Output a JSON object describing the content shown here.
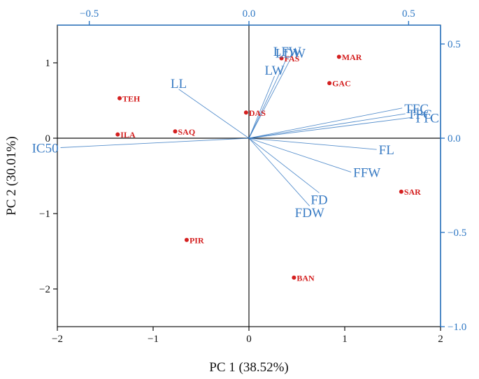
{
  "chart_data": {
    "type": "scatter",
    "title": "",
    "xlabel": "PC 1 (38.52%)",
    "ylabel": "PC 2 (30.01%)",
    "xlim": [
      -2,
      2
    ],
    "ylim": [
      -2.5,
      1.5
    ],
    "x_ticks": [
      "−2",
      "−1",
      "0",
      "1",
      "2"
    ],
    "y_ticks": [
      "−2",
      "−1",
      "0",
      "1"
    ],
    "loadings_xlim": [
      -0.6,
      0.6
    ],
    "loadings_ylim": [
      -1.0,
      0.6
    ],
    "top_ticks": [
      "−0.5",
      "0.0",
      "0.5"
    ],
    "right_ticks": [
      "0.5",
      "0.0",
      "−0.5",
      "−1.0"
    ],
    "colors": {
      "scores": "#d42020",
      "loadings": "#3a7cc4",
      "axes_secondary": "#2f78c4"
    },
    "scores": [
      {
        "label": "TEH",
        "x": -1.35,
        "y": 0.53
      },
      {
        "label": "ILA",
        "x": -1.37,
        "y": 0.05
      },
      {
        "label": "SAQ",
        "x": -0.77,
        "y": 0.09
      },
      {
        "label": "PIR",
        "x": -0.65,
        "y": -1.35
      },
      {
        "label": "DAS",
        "x": -0.03,
        "y": 0.34
      },
      {
        "label": "FAS",
        "x": 0.34,
        "y": 1.06
      },
      {
        "label": "MAR",
        "x": 0.94,
        "y": 1.08
      },
      {
        "label": "GAC",
        "x": 0.84,
        "y": 0.73
      },
      {
        "label": "SAR",
        "x": 1.59,
        "y": -0.71
      },
      {
        "label": "BAN",
        "x": 0.47,
        "y": -1.85
      }
    ],
    "loadings": [
      {
        "label": "LFW",
        "x": 0.12,
        "y": 0.43
      },
      {
        "label": "LDW",
        "x": 0.13,
        "y": 0.42
      },
      {
        "label": "LW",
        "x": 0.08,
        "y": 0.33
      },
      {
        "label": "LL",
        "x": -0.22,
        "y": 0.26
      },
      {
        "label": "TFC",
        "x": 0.48,
        "y": 0.16
      },
      {
        "label": "TPC",
        "x": 0.49,
        "y": 0.13
      },
      {
        "label": "TTC",
        "x": 0.51,
        "y": 0.11
      },
      {
        "label": "FL",
        "x": 0.4,
        "y": -0.06
      },
      {
        "label": "FFW",
        "x": 0.32,
        "y": -0.18
      },
      {
        "label": "FD",
        "x": 0.22,
        "y": -0.29
      },
      {
        "label": "FDW",
        "x": 0.19,
        "y": -0.36
      },
      {
        "label": "IC50",
        "x": -0.59,
        "y": -0.05
      }
    ]
  }
}
